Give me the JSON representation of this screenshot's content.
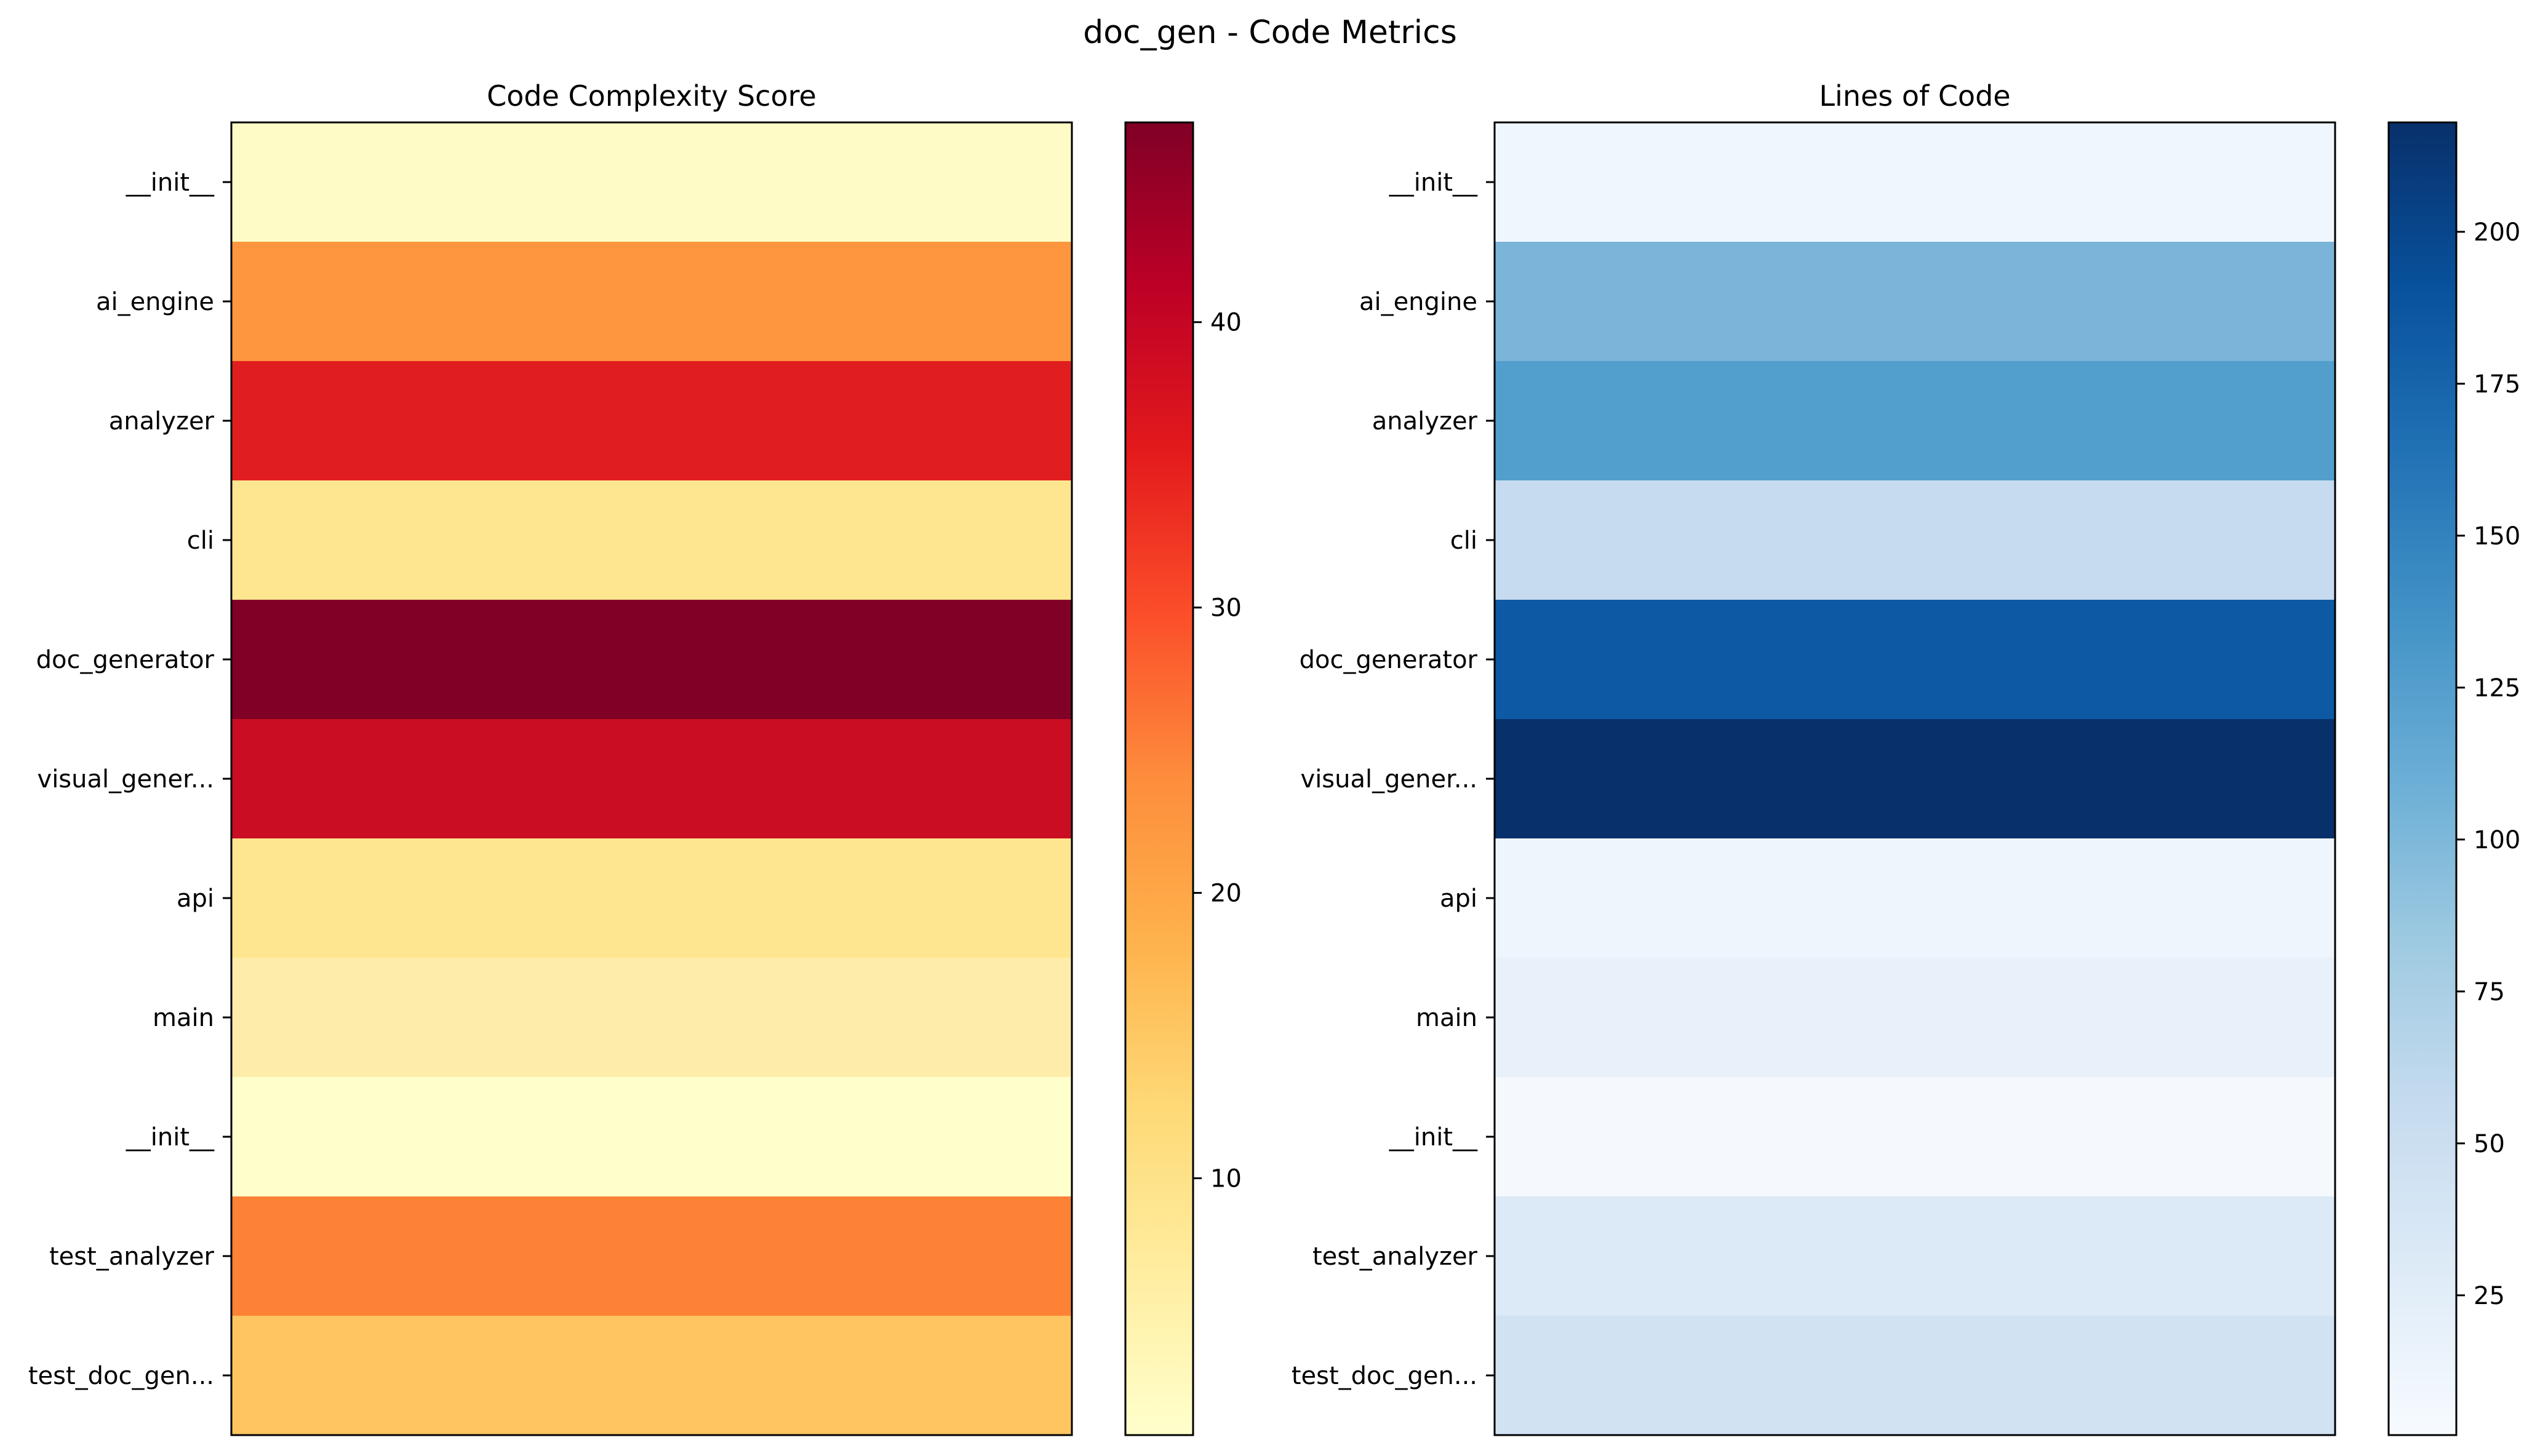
{
  "figure": {
    "title": "doc_gen - Code Metrics"
  },
  "chart_data": [
    {
      "type": "heatmap",
      "title": "Code Complexity Score",
      "xlabel": "",
      "ylabel": "",
      "colormap": "YlOrRd",
      "categories": [
        "__init__",
        "ai_engine",
        "analyzer",
        "cli",
        "doc_generator",
        "visual_gener...",
        "api",
        "main",
        "__init__",
        "test_analyzer",
        "test_doc_gen..."
      ],
      "values": [
        2,
        21,
        38,
        7,
        47,
        40,
        7,
        5,
        1,
        23,
        14
      ],
      "colors": [
        "#fffbc6",
        "#fd963e",
        "#e01e1f",
        "#fee58f",
        "#800026",
        "#ca0d22",
        "#fee58f",
        "#feedaa",
        "#ffffcc",
        "#fd8236",
        "#fec561"
      ],
      "colorbar": {
        "range": [
          1,
          47
        ],
        "ticks": [
          "10",
          "20",
          "30",
          "40"
        ],
        "tick_values": [
          10,
          20,
          30,
          40
        ]
      },
      "grid": false
    },
    {
      "type": "heatmap",
      "title": "Lines of Code",
      "xlabel": "",
      "ylabel": "",
      "colormap": "Blues",
      "categories": [
        "__init__",
        "ai_engine",
        "analyzer",
        "cli",
        "doc_generator",
        "visual_gener...",
        "api",
        "main",
        "__init__",
        "test_analyzer",
        "test_doc_gen..."
      ],
      "values": [
        5,
        100,
        125,
        45,
        180,
        218,
        7,
        15,
        2,
        28,
        38
      ],
      "colors": [
        "#eff6fe",
        "#7ab5d9",
        "#529ecd",
        "#c6dbef",
        "#0e59a3",
        "#08306b",
        "#eef5fd",
        "#e8f1fa",
        "#f5f9fe",
        "#dce9f6",
        "#d1e2f3"
      ],
      "colorbar": {
        "range": [
          2,
          218
        ],
        "ticks": [
          "25",
          "50",
          "75",
          "100",
          "125",
          "150",
          "175",
          "200"
        ],
        "tick_values": [
          25,
          50,
          75,
          100,
          125,
          150,
          175,
          200
        ]
      },
      "grid": false
    }
  ]
}
